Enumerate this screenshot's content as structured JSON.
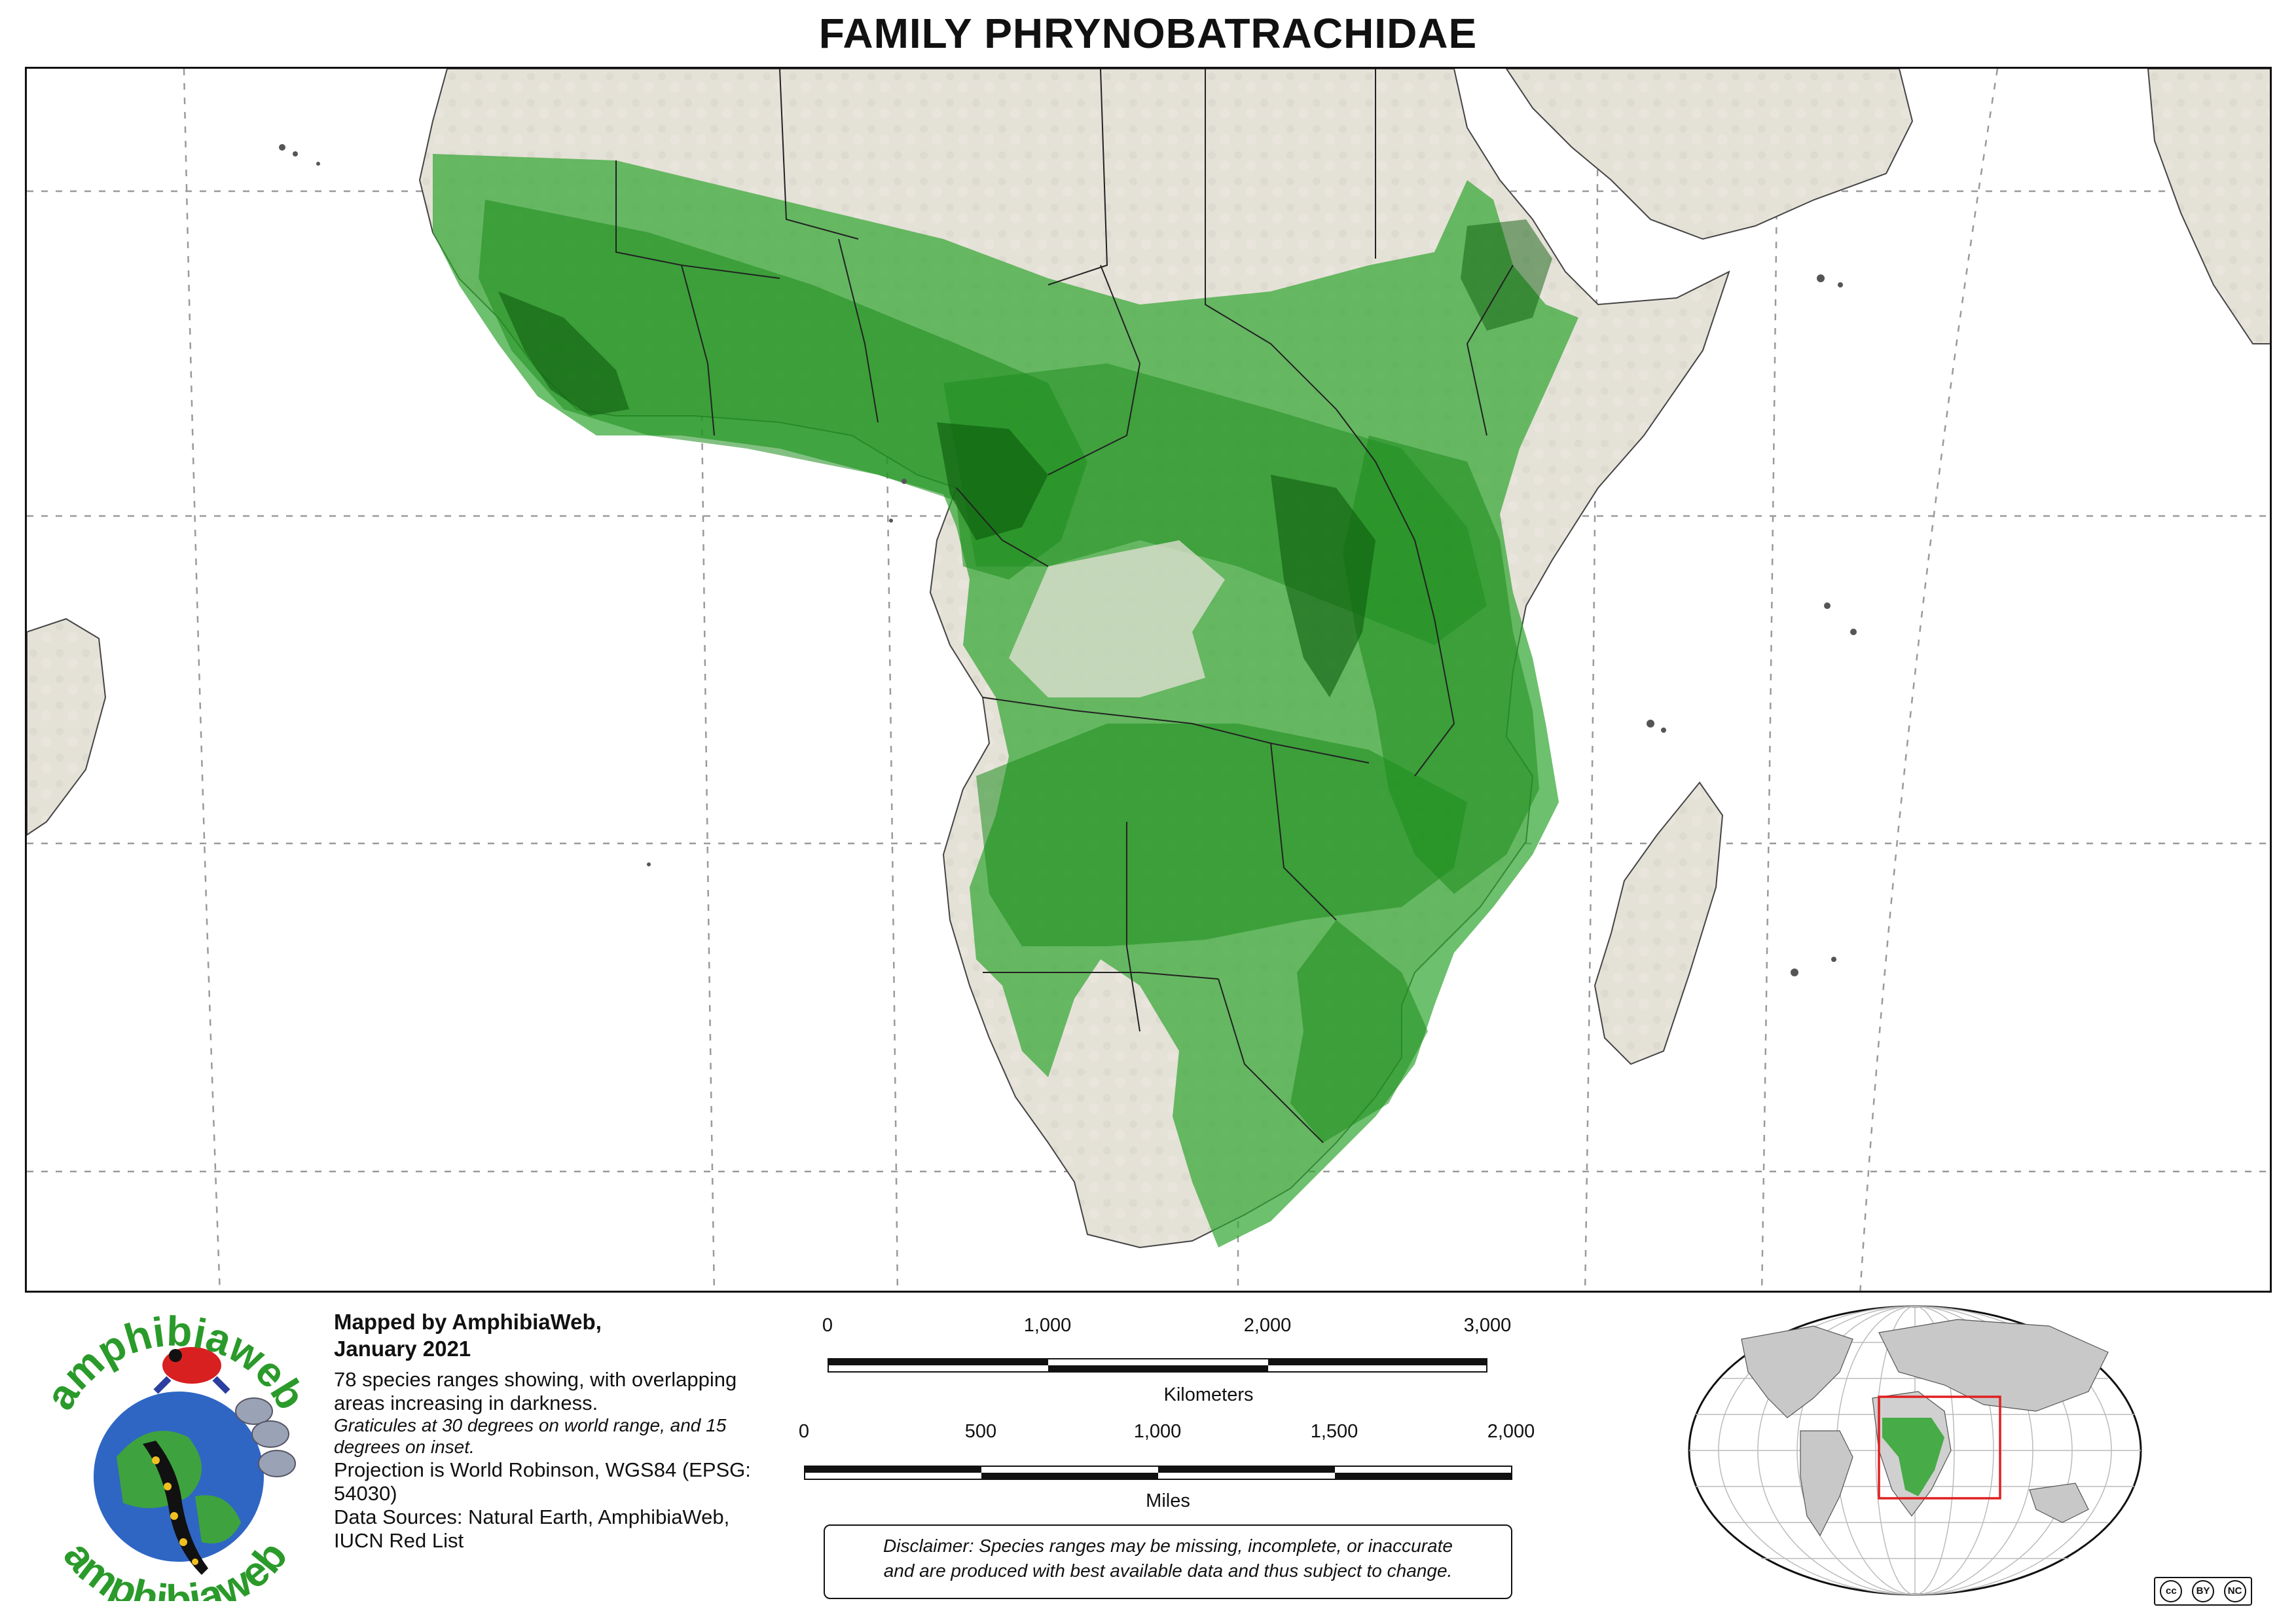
{
  "title": "FAMILY PHRYNOBATRACHIDAE",
  "credit": {
    "line1": "Mapped by AmphibiaWeb,",
    "line2": "January 2021"
  },
  "description": "78 species ranges showing, with overlapping areas increasing in darkness.",
  "graticule_note": "Graticules at 30 degrees on world range, and 15 degrees on inset.",
  "projection": "Projection is World Robinson, WGS84 (EPSG: 54030)",
  "sources": "Data Sources: Natural Earth, AmphibiaWeb, IUCN Red List",
  "scale_km": {
    "labels": [
      "0",
      "1,000",
      "2,000",
      "3,000"
    ],
    "unit": "Kilometers"
  },
  "scale_mi": {
    "labels": [
      "0",
      "500",
      "1,000",
      "1,500",
      "2,000"
    ],
    "unit": "Miles"
  },
  "disclaimer": {
    "line1": "Disclaimer: Species ranges may be missing, incomplete, or inaccurate",
    "line2": "and are produced with best available data and thus subject to change."
  },
  "logo_text": "amphibiaweb",
  "license": {
    "cc": "cc",
    "by": "BY",
    "nc": "NC"
  },
  "colors": {
    "range_light": "#4cb84c",
    "range_dark": "#127a12",
    "land": "#e2dfd5",
    "border": "#222222",
    "inset_box": "#e02020"
  },
  "species_count": 78
}
